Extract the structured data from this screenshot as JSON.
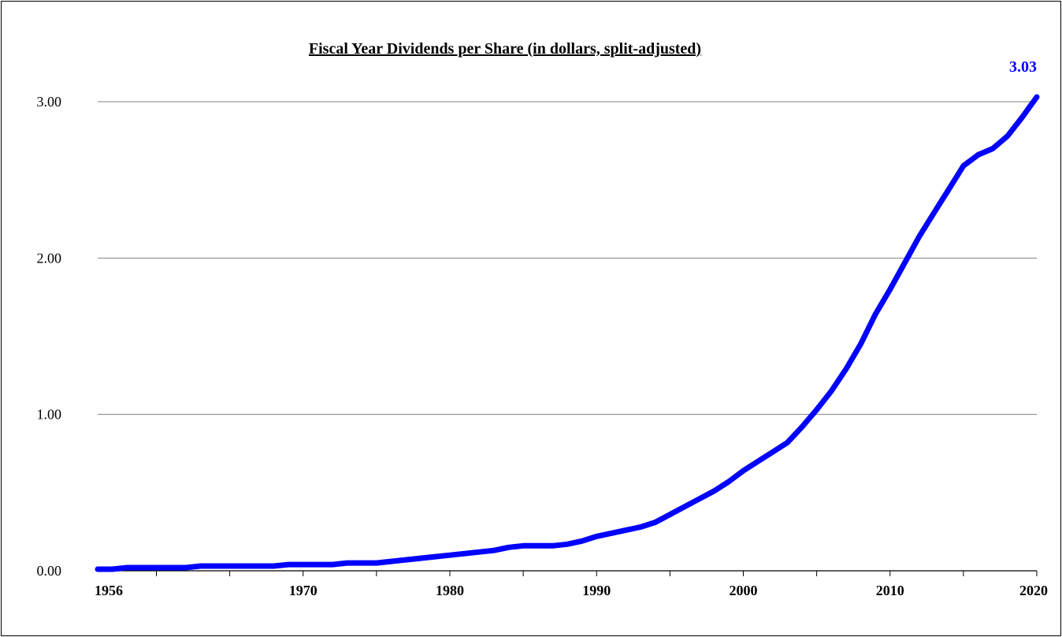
{
  "chart_data": {
    "type": "line",
    "title": "Fiscal Year Dividends per Share (in dollars, split-adjusted)",
    "xlabel": "",
    "ylabel": "",
    "xlim": [
      1956,
      2020
    ],
    "ylim": [
      0,
      3.0
    ],
    "y_ticks": [
      0,
      1,
      2,
      3
    ],
    "y_tick_labels": [
      "0.00",
      "1.00",
      "2.00",
      "3.00"
    ],
    "x_ticks": [
      1956,
      1970,
      1980,
      1990,
      2000,
      2010,
      2020
    ],
    "x_tick_labels": [
      "1956",
      "1970",
      "1980",
      "1990",
      "2000",
      "2010",
      "2020"
    ],
    "grid": "horizontal",
    "end_label": "3.03",
    "line_color": "#0000ff",
    "series": [
      {
        "x": [
          1956,
          1957,
          1958,
          1959,
          1960,
          1961,
          1962,
          1963,
          1964,
          1965,
          1966,
          1967,
          1968,
          1969,
          1970,
          1971,
          1972,
          1973,
          1974,
          1975,
          1976,
          1977,
          1978,
          1979,
          1980,
          1981,
          1982,
          1983,
          1984,
          1985,
          1986,
          1987,
          1988,
          1989,
          1990,
          1991,
          1992,
          1993,
          1994,
          1995,
          1996,
          1997,
          1998,
          1999,
          2000,
          2001,
          2002,
          2003,
          2004,
          2005,
          2006,
          2007,
          2008,
          2009,
          2010,
          2011,
          2012,
          2013,
          2014,
          2015,
          2016,
          2017,
          2018,
          2019,
          2020
        ],
        "y": [
          0.01,
          0.01,
          0.02,
          0.02,
          0.02,
          0.02,
          0.02,
          0.03,
          0.03,
          0.03,
          0.03,
          0.03,
          0.03,
          0.04,
          0.04,
          0.04,
          0.04,
          0.05,
          0.05,
          0.05,
          0.06,
          0.07,
          0.08,
          0.09,
          0.1,
          0.11,
          0.12,
          0.13,
          0.15,
          0.16,
          0.16,
          0.16,
          0.17,
          0.19,
          0.22,
          0.24,
          0.26,
          0.28,
          0.31,
          0.36,
          0.41,
          0.46,
          0.51,
          0.57,
          0.64,
          0.7,
          0.76,
          0.82,
          0.92,
          1.03,
          1.15,
          1.29,
          1.45,
          1.64,
          1.8,
          1.97,
          2.14,
          2.29,
          2.44,
          2.59,
          2.66,
          2.7,
          2.78,
          2.9,
          3.03
        ]
      }
    ]
  }
}
